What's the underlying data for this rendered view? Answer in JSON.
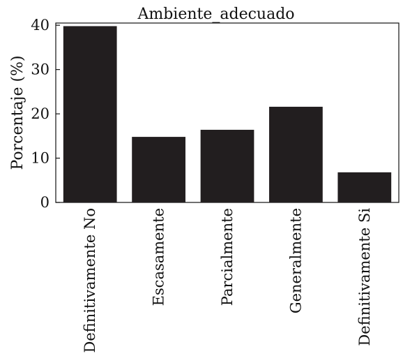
{
  "chart_data": {
    "type": "bar",
    "title": "Ambiente_adecuado",
    "xlabel": "",
    "ylabel": "Porcentaje (%)",
    "categories": [
      "Definitivamente No",
      "Escasamente",
      "Parcialmente",
      "Generalmente",
      "Definitivamente Si"
    ],
    "values": [
      39.8,
      14.8,
      16.4,
      21.6,
      6.8
    ],
    "ylim": [
      0,
      40.5
    ],
    "yticks": [
      0,
      10,
      20,
      30,
      40
    ],
    "grid": false,
    "legend": "none",
    "bar_color": "#221e1f"
  }
}
